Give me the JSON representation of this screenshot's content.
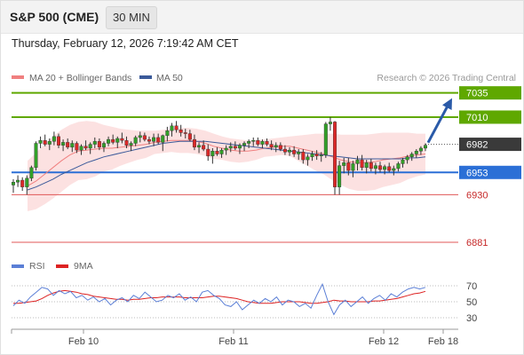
{
  "header": {
    "title": "S&P 500 (CME)",
    "timeframe": "30 MIN"
  },
  "datetime": "Thursday, February 12, 2026 7:19:42 AM CET",
  "legend": {
    "ma20": "MA 20 + Bollinger Bands",
    "ma50": "MA 50",
    "credit": "Research © 2026 Trading Central"
  },
  "rsi_legend": {
    "rsi": "RSI",
    "ma9": "9MA"
  },
  "colors": {
    "target": "#5fa800",
    "pivot": "#2b6fd6",
    "support": "#e05757",
    "last": "#3a3a3a",
    "ma20": "#f08080",
    "ma50": "#3b5a9a",
    "band": "#fcdcdc",
    "up": "#32a028",
    "down": "#dc2828",
    "rsi": "#5b7fd6",
    "rsi_ma": "#dd2222",
    "arrow": "#2a5aa8"
  },
  "chart_data": [
    {
      "type": "candlestick",
      "ylim": [
        6870,
        7042
      ],
      "x_ticks": [
        "Feb 10",
        "Feb 11",
        "Feb 12",
        "Feb 18"
      ],
      "levels": [
        {
          "value": 7035,
          "label": "7035",
          "kind": "target"
        },
        {
          "value": 7010,
          "label": "7010",
          "kind": "target"
        },
        {
          "value": 6982,
          "label": "6982",
          "kind": "last"
        },
        {
          "value": 6953,
          "label": "6953",
          "kind": "pivot"
        },
        {
          "value": 6930,
          "label": "6930",
          "kind": "support"
        },
        {
          "value": 6881,
          "label": "6881",
          "kind": "support"
        }
      ],
      "series": [
        {
          "name": "MA 20 + Bollinger Bands",
          "values": [
            6939,
            6944,
            6951,
            6958,
            6965,
            6971,
            6975,
            6976,
            6977,
            6978,
            6978,
            6979,
            6980,
            6981,
            6982,
            6984,
            6985,
            6986,
            6986,
            6986,
            6985,
            6983,
            6980,
            6978,
            6976,
            6975,
            6975,
            6976,
            6978,
            6979,
            6980,
            6980,
            6978,
            6976,
            6974,
            6972,
            6969,
            6966,
            6964,
            6963,
            6963,
            6964,
            6966,
            6967,
            6968,
            6970,
            6971,
            6972
          ]
        },
        {
          "name": "MA 50",
          "values": [
            6935,
            6938,
            6942,
            6946,
            6951,
            6955,
            6959,
            6963,
            6966,
            6969,
            6971,
            6973,
            6975,
            6977,
            6979,
            6981,
            6983,
            6984,
            6985,
            6985,
            6985,
            6985,
            6984,
            6983,
            6982,
            6981,
            6980,
            6979,
            6978,
            6977,
            6976,
            6975,
            6974,
            6973,
            6972,
            6971,
            6970,
            6969,
            6968,
            6967,
            6967,
            6967,
            6967,
            6967,
            6967,
            6968,
            6968,
            6969
          ]
        },
        {
          "name": "Bollinger Upper",
          "values": [
            6965,
            6973,
            6982,
            6990,
            6997,
            7002,
            7005,
            7006,
            7005,
            7002,
            7000,
            6998,
            6997,
            6996,
            6996,
            6996,
            6997,
            6998,
            6999,
            6999,
            6998,
            6996,
            6993,
            6990,
            6988,
            6987,
            6986,
            6986,
            6987,
            6988,
            6989,
            6990,
            6991,
            6992,
            6993,
            6993,
            6993,
            6992,
            6992,
            6992,
            6992,
            6993,
            6994,
            6994,
            6994,
            6994,
            6993,
            6993
          ]
        },
        {
          "name": "Bollinger Lower",
          "values": [
            6913,
            6915,
            6920,
            6926,
            6933,
            6940,
            6945,
            6946,
            6949,
            6954,
            6956,
            6960,
            6963,
            6966,
            6968,
            6972,
            6973,
            6974,
            6973,
            6973,
            6972,
            6970,
            6967,
            6966,
            6964,
            6963,
            6964,
            6966,
            6969,
            6970,
            6971,
            6970,
            6965,
            6960,
            6955,
            6951,
            6945,
            6940,
            6936,
            6934,
            6934,
            6935,
            6938,
            6940,
            6942,
            6946,
            6949,
            6951
          ]
        }
      ],
      "candles": [
        {
          "o": 6940,
          "h": 6946,
          "l": 6932,
          "c": 6943
        },
        {
          "o": 6943,
          "h": 6950,
          "l": 6938,
          "c": 6945
        },
        {
          "o": 6945,
          "h": 6948,
          "l": 6934,
          "c": 6938
        },
        {
          "o": 6938,
          "h": 6950,
          "l": 6930,
          "c": 6947
        },
        {
          "o": 6947,
          "h": 6960,
          "l": 6944,
          "c": 6958
        },
        {
          "o": 6958,
          "h": 6985,
          "l": 6955,
          "c": 6983
        },
        {
          "o": 6983,
          "h": 6990,
          "l": 6978,
          "c": 6986
        },
        {
          "o": 6986,
          "h": 6992,
          "l": 6980,
          "c": 6982
        },
        {
          "o": 6982,
          "h": 6988,
          "l": 6976,
          "c": 6985
        },
        {
          "o": 6985,
          "h": 6995,
          "l": 6981,
          "c": 6990
        },
        {
          "o": 6990,
          "h": 6993,
          "l": 6978,
          "c": 6981
        },
        {
          "o": 6981,
          "h": 6987,
          "l": 6975,
          "c": 6984
        },
        {
          "o": 6984,
          "h": 6988,
          "l": 6977,
          "c": 6979
        },
        {
          "o": 6979,
          "h": 6986,
          "l": 6974,
          "c": 6983
        },
        {
          "o": 6983,
          "h": 6985,
          "l": 6973,
          "c": 6976
        },
        {
          "o": 6976,
          "h": 6982,
          "l": 6971,
          "c": 6980
        },
        {
          "o": 6980,
          "h": 6986,
          "l": 6976,
          "c": 6978
        },
        {
          "o": 6978,
          "h": 6984,
          "l": 6972,
          "c": 6982
        },
        {
          "o": 6982,
          "h": 6989,
          "l": 6978,
          "c": 6985
        },
        {
          "o": 6985,
          "h": 6988,
          "l": 6976,
          "c": 6979
        },
        {
          "o": 6979,
          "h": 6985,
          "l": 6974,
          "c": 6983
        },
        {
          "o": 6983,
          "h": 6990,
          "l": 6980,
          "c": 6987
        },
        {
          "o": 6987,
          "h": 6992,
          "l": 6982,
          "c": 6984
        },
        {
          "o": 6984,
          "h": 6990,
          "l": 6978,
          "c": 6988
        },
        {
          "o": 6988,
          "h": 6994,
          "l": 6983,
          "c": 6986
        },
        {
          "o": 6986,
          "h": 6990,
          "l": 6978,
          "c": 6981
        },
        {
          "o": 6981,
          "h": 6985,
          "l": 6975,
          "c": 6983
        },
        {
          "o": 6983,
          "h": 6991,
          "l": 6980,
          "c": 6989
        },
        {
          "o": 6989,
          "h": 6995,
          "l": 6984,
          "c": 6991
        },
        {
          "o": 6991,
          "h": 6994,
          "l": 6985,
          "c": 6987
        },
        {
          "o": 6987,
          "h": 6990,
          "l": 6982,
          "c": 6985
        },
        {
          "o": 6985,
          "h": 6993,
          "l": 6980,
          "c": 6989
        },
        {
          "o": 6989,
          "h": 6993,
          "l": 6982,
          "c": 6984
        },
        {
          "o": 6984,
          "h": 6992,
          "l": 6975,
          "c": 6991
        },
        {
          "o": 6991,
          "h": 7000,
          "l": 6985,
          "c": 6996
        },
        {
          "o": 6996,
          "h": 7004,
          "l": 6990,
          "c": 7001
        },
        {
          "o": 7001,
          "h": 7006,
          "l": 6994,
          "c": 6997
        },
        {
          "o": 6997,
          "h": 7002,
          "l": 6990,
          "c": 6994
        },
        {
          "o": 6994,
          "h": 6998,
          "l": 6988,
          "c": 6993
        },
        {
          "o": 6993,
          "h": 6997,
          "l": 6985,
          "c": 6987
        },
        {
          "o": 6987,
          "h": 6992,
          "l": 6976,
          "c": 6979
        },
        {
          "o": 6979,
          "h": 6984,
          "l": 6973,
          "c": 6981
        },
        {
          "o": 6981,
          "h": 6986,
          "l": 6975,
          "c": 6977
        },
        {
          "o": 6977,
          "h": 6982,
          "l": 6965,
          "c": 6970
        },
        {
          "o": 6970,
          "h": 6978,
          "l": 6962,
          "c": 6975
        },
        {
          "o": 6975,
          "h": 6979,
          "l": 6970,
          "c": 6972
        },
        {
          "o": 6972,
          "h": 6978,
          "l": 6968,
          "c": 6976
        },
        {
          "o": 6976,
          "h": 6981,
          "l": 6971,
          "c": 6978
        },
        {
          "o": 6978,
          "h": 6984,
          "l": 6974,
          "c": 6980
        },
        {
          "o": 6980,
          "h": 6985,
          "l": 6976,
          "c": 6978
        },
        {
          "o": 6978,
          "h": 6983,
          "l": 6972,
          "c": 6981
        },
        {
          "o": 6981,
          "h": 6985,
          "l": 6975,
          "c": 6983
        },
        {
          "o": 6983,
          "h": 6987,
          "l": 6978,
          "c": 6985
        },
        {
          "o": 6985,
          "h": 6989,
          "l": 6980,
          "c": 6986
        },
        {
          "o": 6986,
          "h": 6989,
          "l": 6980,
          "c": 6982
        },
        {
          "o": 6982,
          "h": 6987,
          "l": 6978,
          "c": 6985
        },
        {
          "o": 6985,
          "h": 6988,
          "l": 6980,
          "c": 6982
        },
        {
          "o": 6982,
          "h": 6986,
          "l": 6976,
          "c": 6979
        },
        {
          "o": 6979,
          "h": 6984,
          "l": 6974,
          "c": 6981
        },
        {
          "o": 6981,
          "h": 6984,
          "l": 6975,
          "c": 6977
        },
        {
          "o": 6977,
          "h": 6981,
          "l": 6971,
          "c": 6974
        },
        {
          "o": 6974,
          "h": 6979,
          "l": 6970,
          "c": 6976
        },
        {
          "o": 6976,
          "h": 6980,
          "l": 6969,
          "c": 6972
        },
        {
          "o": 6972,
          "h": 6977,
          "l": 6966,
          "c": 6974
        },
        {
          "o": 6974,
          "h": 6977,
          "l": 6962,
          "c": 6966
        },
        {
          "o": 6966,
          "h": 6972,
          "l": 6960,
          "c": 6969
        },
        {
          "o": 6969,
          "h": 6975,
          "l": 6965,
          "c": 6972
        },
        {
          "o": 6972,
          "h": 6976,
          "l": 6966,
          "c": 6970
        },
        {
          "o": 6970,
          "h": 6974,
          "l": 6964,
          "c": 6971
        },
        {
          "o": 6971,
          "h": 7005,
          "l": 6968,
          "c": 7003
        },
        {
          "o": 7003,
          "h": 7010,
          "l": 6996,
          "c": 7005
        },
        {
          "o": 7005,
          "h": 7006,
          "l": 6930,
          "c": 6938
        },
        {
          "o": 6938,
          "h": 6965,
          "l": 6930,
          "c": 6960
        },
        {
          "o": 6960,
          "h": 6968,
          "l": 6952,
          "c": 6963
        },
        {
          "o": 6963,
          "h": 6968,
          "l": 6950,
          "c": 6955
        },
        {
          "o": 6955,
          "h": 6965,
          "l": 6948,
          "c": 6962
        },
        {
          "o": 6962,
          "h": 6970,
          "l": 6955,
          "c": 6966
        },
        {
          "o": 6966,
          "h": 6971,
          "l": 6955,
          "c": 6958
        },
        {
          "o": 6958,
          "h": 6966,
          "l": 6952,
          "c": 6963
        },
        {
          "o": 6963,
          "h": 6967,
          "l": 6954,
          "c": 6957
        },
        {
          "o": 6957,
          "h": 6963,
          "l": 6951,
          "c": 6960
        },
        {
          "o": 6960,
          "h": 6964,
          "l": 6953,
          "c": 6956
        },
        {
          "o": 6956,
          "h": 6961,
          "l": 6951,
          "c": 6959
        },
        {
          "o": 6959,
          "h": 6963,
          "l": 6953,
          "c": 6955
        },
        {
          "o": 6955,
          "h": 6960,
          "l": 6950,
          "c": 6957
        },
        {
          "o": 6957,
          "h": 6964,
          "l": 6954,
          "c": 6962
        },
        {
          "o": 6962,
          "h": 6968,
          "l": 6958,
          "c": 6966
        },
        {
          "o": 6966,
          "h": 6971,
          "l": 6962,
          "c": 6969
        },
        {
          "o": 6969,
          "h": 6974,
          "l": 6965,
          "c": 6972
        },
        {
          "o": 6972,
          "h": 6977,
          "l": 6968,
          "c": 6975
        },
        {
          "o": 6975,
          "h": 6980,
          "l": 6971,
          "c": 6978
        },
        {
          "o": 6978,
          "h": 6983,
          "l": 6975,
          "c": 6981
        }
      ]
    },
    {
      "type": "line",
      "ylim": [
        20,
        80
      ],
      "yticks": [
        70,
        50,
        30
      ],
      "series": [
        {
          "name": "RSI",
          "values": [
            45,
            52,
            48,
            56,
            62,
            68,
            66,
            58,
            64,
            60,
            63,
            55,
            58,
            52,
            56,
            50,
            54,
            46,
            52,
            55,
            50,
            58,
            54,
            62,
            56,
            50,
            52,
            58,
            55,
            60,
            52,
            56,
            50,
            62,
            64,
            58,
            54,
            46,
            44,
            50,
            40,
            46,
            52,
            48,
            54,
            50,
            56,
            46,
            52,
            50,
            44,
            48,
            42,
            58,
            72,
            50,
            34,
            46,
            52,
            44,
            50,
            56,
            48,
            54,
            58,
            52,
            60,
            56,
            62,
            66,
            68,
            66,
            68
          ]
        },
        {
          "name": "9MA",
          "values": [
            48,
            48,
            49,
            50,
            51,
            54,
            58,
            61,
            63,
            64,
            63,
            62,
            60,
            59,
            57,
            56,
            55,
            54,
            53,
            53,
            52,
            53,
            53,
            54,
            55,
            55,
            56,
            56,
            56,
            56,
            55,
            55,
            55,
            55,
            56,
            57,
            57,
            56,
            55,
            54,
            52,
            50,
            49,
            48,
            48,
            48,
            49,
            50,
            50,
            50,
            50,
            49,
            48,
            48,
            49,
            50,
            52,
            51,
            51,
            50,
            50,
            50,
            50,
            51,
            51,
            52,
            53,
            54,
            56,
            58,
            60,
            61,
            63
          ]
        }
      ]
    }
  ]
}
